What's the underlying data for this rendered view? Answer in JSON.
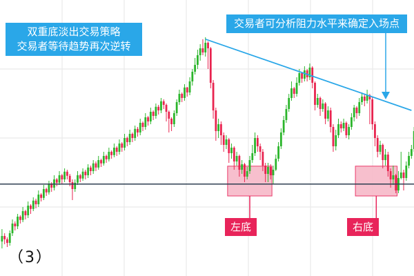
{
  "callouts": {
    "top_left_line1": "双重底淡出交易策略",
    "top_left_line2": "交易者等待趋势再次逆转",
    "top_right": "交易者可分析阻力水平来确定入场点"
  },
  "labels": {
    "left_bottom": "左底",
    "right_bottom": "右底",
    "figure_number": "（3）"
  },
  "colors": {
    "bull": "#2bb52b",
    "bear": "#e8244f",
    "resistance_line": "#2aa7e8",
    "support_line": "#2c3e50",
    "zone_fill": "#f7b9c8",
    "zone_stroke": "#e8245a",
    "grid": "#e6e6e6"
  },
  "chart_data": {
    "type": "candlestick",
    "price_range": [
      0,
      100
    ],
    "grid": true,
    "support_level": 33.3,
    "resistance_line": {
      "from": {
        "candle": 78,
        "price": 85.8
      },
      "to": {
        "candle": 157,
        "price": 60.0
      }
    },
    "bottom_zones": [
      {
        "label": "左底",
        "candle_start": 87,
        "candle_end": 104,
        "price_top": 39.8,
        "price_bottom": 29.0
      },
      {
        "label": "右底",
        "candle_start": 136,
        "candle_end": 152,
        "price_top": 39.8,
        "price_bottom": 29.0
      }
    ],
    "candles": [
      [
        12.5,
        14.5,
        17.0,
        10.0
      ],
      [
        14.5,
        13.3,
        15.5,
        11.5
      ],
      [
        13.3,
        12.0,
        14.0,
        10.5
      ],
      [
        12.0,
        15.5,
        16.5,
        11.0
      ],
      [
        15.5,
        19.0,
        20.5,
        14.5
      ],
      [
        19.0,
        18.0,
        19.8,
        16.5
      ],
      [
        18.0,
        21.5,
        22.5,
        17.0
      ],
      [
        21.5,
        20.3,
        22.0,
        19.0
      ],
      [
        20.3,
        23.5,
        25.0,
        19.5
      ],
      [
        23.5,
        22.0,
        24.0,
        20.5
      ],
      [
        22.0,
        25.5,
        27.0,
        21.0
      ],
      [
        25.5,
        24.3,
        26.0,
        22.5
      ],
      [
        24.3,
        27.3,
        28.5,
        23.5
      ],
      [
        27.3,
        26.0,
        28.0,
        24.5
      ],
      [
        26.0,
        29.5,
        31.0,
        25.0
      ],
      [
        29.5,
        28.3,
        30.0,
        27.0
      ],
      [
        28.3,
        31.5,
        33.0,
        27.5
      ],
      [
        31.5,
        30.3,
        32.0,
        29.0
      ],
      [
        30.3,
        33.3,
        34.5,
        29.5
      ],
      [
        33.3,
        32.0,
        34.0,
        30.5
      ],
      [
        32.0,
        35.0,
        36.5,
        31.0
      ],
      [
        35.0,
        33.8,
        35.5,
        32.5
      ],
      [
        33.8,
        36.5,
        38.0,
        33.0
      ],
      [
        36.5,
        35.0,
        37.0,
        33.5
      ],
      [
        35.0,
        37.8,
        39.0,
        34.0
      ],
      [
        37.8,
        36.3,
        38.5,
        35.0
      ],
      [
        36.3,
        34.0,
        37.0,
        32.5
      ],
      [
        34.0,
        31.5,
        35.0,
        27.5
      ],
      [
        31.5,
        33.8,
        35.0,
        30.5
      ],
      [
        33.8,
        36.5,
        38.0,
        33.0
      ],
      [
        36.5,
        35.3,
        37.0,
        34.0
      ],
      [
        35.3,
        37.8,
        39.0,
        34.5
      ],
      [
        37.8,
        36.5,
        38.5,
        35.0
      ],
      [
        36.5,
        39.3,
        40.5,
        35.5
      ],
      [
        39.3,
        38.0,
        40.0,
        36.5
      ],
      [
        38.0,
        40.8,
        42.0,
        37.0
      ],
      [
        40.8,
        39.3,
        41.5,
        38.0
      ],
      [
        39.3,
        42.0,
        43.5,
        38.5
      ],
      [
        42.0,
        40.8,
        42.5,
        39.5
      ],
      [
        40.8,
        43.5,
        45.0,
        40.0
      ],
      [
        43.5,
        42.3,
        44.0,
        41.0
      ],
      [
        42.3,
        45.0,
        46.5,
        41.5
      ],
      [
        45.0,
        43.8,
        45.5,
        42.5
      ],
      [
        43.8,
        46.5,
        48.0,
        43.0
      ],
      [
        46.5,
        45.0,
        47.0,
        43.5
      ],
      [
        45.0,
        48.0,
        49.5,
        44.0
      ],
      [
        48.0,
        46.5,
        48.5,
        45.0
      ],
      [
        46.5,
        50.0,
        51.5,
        45.5
      ],
      [
        50.0,
        48.5,
        50.5,
        47.0
      ],
      [
        48.5,
        51.5,
        53.0,
        47.5
      ],
      [
        51.5,
        50.0,
        52.0,
        48.5
      ],
      [
        50.0,
        53.3,
        54.5,
        49.0
      ],
      [
        53.3,
        52.0,
        54.0,
        50.5
      ],
      [
        52.0,
        55.5,
        57.0,
        51.0
      ],
      [
        55.5,
        54.0,
        56.0,
        52.5
      ],
      [
        54.0,
        57.5,
        59.0,
        53.0
      ],
      [
        57.5,
        56.0,
        58.0,
        54.5
      ],
      [
        56.0,
        59.5,
        61.0,
        55.0
      ],
      [
        59.5,
        58.0,
        60.0,
        56.5
      ],
      [
        58.0,
        61.3,
        62.5,
        57.0
      ],
      [
        61.3,
        60.0,
        62.0,
        58.5
      ],
      [
        60.0,
        63.3,
        64.5,
        59.0
      ],
      [
        63.3,
        62.0,
        64.0,
        60.5
      ],
      [
        62.0,
        59.5,
        62.5,
        56.0
      ],
      [
        59.5,
        57.0,
        60.0,
        52.0
      ],
      [
        57.0,
        55.0,
        57.5,
        52.5
      ],
      [
        55.0,
        59.0,
        60.0,
        54.0
      ],
      [
        59.0,
        63.0,
        64.0,
        58.0
      ],
      [
        63.0,
        66.0,
        67.5,
        62.0
      ],
      [
        66.0,
        64.5,
        66.5,
        63.0
      ],
      [
        64.5,
        68.3,
        69.5,
        63.5
      ],
      [
        68.3,
        66.5,
        68.5,
        65.0
      ],
      [
        66.5,
        70.5,
        72.0,
        65.5
      ],
      [
        70.5,
        74.0,
        75.0,
        69.0
      ],
      [
        74.0,
        76.5,
        79.0,
        73.0
      ],
      [
        76.5,
        80.0,
        82.0,
        75.0
      ],
      [
        80.0,
        82.5,
        84.0,
        78.0
      ],
      [
        82.5,
        81.0,
        85.8,
        80.0
      ],
      [
        81.0,
        84.5,
        86.5,
        79.5
      ],
      [
        84.5,
        82.5,
        85.0,
        75.0
      ],
      [
        82.5,
        70.0,
        83.0,
        68.0
      ],
      [
        70.0,
        60.0,
        71.0,
        57.0
      ],
      [
        60.0,
        52.5,
        61.0,
        49.0
      ],
      [
        52.5,
        55.0,
        57.0,
        50.0
      ],
      [
        55.0,
        51.0,
        56.0,
        47.5
      ],
      [
        51.0,
        47.5,
        52.0,
        45.0
      ],
      [
        47.5,
        49.5,
        51.0,
        46.0
      ],
      [
        49.5,
        44.5,
        50.0,
        41.0
      ],
      [
        44.5,
        46.5,
        48.0,
        42.5
      ],
      [
        46.5,
        41.5,
        47.0,
        38.5
      ],
      [
        41.5,
        43.5,
        45.0,
        40.0
      ],
      [
        43.5,
        38.5,
        44.0,
        36.0
      ],
      [
        38.5,
        40.5,
        42.0,
        37.0
      ],
      [
        40.5,
        36.0,
        41.0,
        34.0
      ],
      [
        36.0,
        38.0,
        39.5,
        35.0
      ],
      [
        38.0,
        42.0,
        43.5,
        37.0
      ],
      [
        42.0,
        44.5,
        47.5,
        41.0
      ],
      [
        44.5,
        50.0,
        52.0,
        43.5
      ],
      [
        50.0,
        47.0,
        51.0,
        45.0
      ],
      [
        47.0,
        45.0,
        48.0,
        42.0
      ],
      [
        45.0,
        40.0,
        46.0,
        38.0
      ],
      [
        40.0,
        37.0,
        41.0,
        34.0
      ],
      [
        37.0,
        39.5,
        41.0,
        34.0
      ],
      [
        39.5,
        36.5,
        40.5,
        35.0
      ],
      [
        36.5,
        38.5,
        40.0,
        33.5
      ],
      [
        38.5,
        42.5,
        44.0,
        38.0
      ],
      [
        42.5,
        47.0,
        48.5,
        41.5
      ],
      [
        47.0,
        52.0,
        53.5,
        46.0
      ],
      [
        52.0,
        56.5,
        58.0,
        51.0
      ],
      [
        56.5,
        60.5,
        62.0,
        55.5
      ],
      [
        60.5,
        64.5,
        66.0,
        59.5
      ],
      [
        64.5,
        68.0,
        70.5,
        63.5
      ],
      [
        68.0,
        66.0,
        68.5,
        64.5
      ],
      [
        66.0,
        70.0,
        72.0,
        65.0
      ],
      [
        70.0,
        73.5,
        75.0,
        69.0
      ],
      [
        73.5,
        71.5,
        74.0,
        70.0
      ],
      [
        71.5,
        74.5,
        76.0,
        70.5
      ],
      [
        74.5,
        72.0,
        75.0,
        70.5
      ],
      [
        72.0,
        75.5,
        77.0,
        71.0
      ],
      [
        75.5,
        70.0,
        76.0,
        68.0
      ],
      [
        70.0,
        62.0,
        70.5,
        60.0
      ],
      [
        62.0,
        64.5,
        66.0,
        61.0
      ],
      [
        64.5,
        60.5,
        65.0,
        58.0
      ],
      [
        60.5,
        62.5,
        64.0,
        59.5
      ],
      [
        62.5,
        57.0,
        63.0,
        55.0
      ],
      [
        57.0,
        60.0,
        61.5,
        56.0
      ],
      [
        60.0,
        54.0,
        61.0,
        52.0
      ],
      [
        54.0,
        47.0,
        55.0,
        45.0
      ],
      [
        47.0,
        51.0,
        53.0,
        45.5
      ],
      [
        51.0,
        55.0,
        57.0,
        50.0
      ],
      [
        55.0,
        53.5,
        56.0,
        52.0
      ],
      [
        53.5,
        55.5,
        57.0,
        52.5
      ],
      [
        55.5,
        51.0,
        56.0,
        50.0
      ],
      [
        51.0,
        54.0,
        55.0,
        49.5
      ],
      [
        54.0,
        57.5,
        59.0,
        53.0
      ],
      [
        57.5,
        61.0,
        62.0,
        56.0
      ],
      [
        61.0,
        59.0,
        61.5,
        57.0
      ],
      [
        59.0,
        63.0,
        64.5,
        58.0
      ],
      [
        63.0,
        65.0,
        66.5,
        62.0
      ],
      [
        65.0,
        63.5,
        66.0,
        61.5
      ],
      [
        63.5,
        65.5,
        67.5,
        62.5
      ],
      [
        65.5,
        64.0,
        66.0,
        55.0
      ],
      [
        64.0,
        55.0,
        65.0,
        53.0
      ],
      [
        55.0,
        50.0,
        56.0,
        47.0
      ],
      [
        50.0,
        45.0,
        51.0,
        43.0
      ],
      [
        45.0,
        47.5,
        49.0,
        44.0
      ],
      [
        47.5,
        42.0,
        48.0,
        39.0
      ],
      [
        42.0,
        44.0,
        46.0,
        40.0
      ],
      [
        44.0,
        38.0,
        45.0,
        36.0
      ],
      [
        38.0,
        35.0,
        39.0,
        32.0
      ],
      [
        35.0,
        36.5,
        40.0,
        33.0
      ],
      [
        36.5,
        31.0,
        37.0,
        30.0
      ],
      [
        31.0,
        35.5,
        38.0,
        30.0
      ],
      [
        35.5,
        37.5,
        45.0,
        35.0
      ],
      [
        37.5,
        35.5,
        38.5,
        31.0
      ],
      [
        35.5,
        40.0,
        41.5,
        34.5
      ],
      [
        40.0,
        43.5,
        45.0,
        39.0
      ],
      [
        43.5,
        46.0,
        47.5,
        42.5
      ],
      [
        46.0,
        52.5,
        54.0,
        45.0
      ],
      [
        52.5,
        57.5,
        59.0,
        51.5
      ],
      [
        57.5,
        55.5,
        58.0,
        54.0
      ],
      [
        55.5,
        57.5,
        60.0,
        54.5
      ],
      [
        57.5,
        62.0,
        64.0,
        57.0
      ],
      [
        62.0,
        59.0,
        62.5,
        57.0
      ],
      [
        59.0,
        57.0,
        60.0,
        55.0
      ],
      [
        57.0,
        56.0,
        58.0,
        53.5
      ],
      [
        56.0,
        58.5,
        60.0,
        55.0
      ],
      [
        58.5,
        55.0,
        59.0,
        52.5
      ],
      [
        55.0,
        51.0,
        56.0,
        48.5
      ],
      [
        51.0,
        47.5,
        52.0,
        46.0
      ]
    ]
  }
}
